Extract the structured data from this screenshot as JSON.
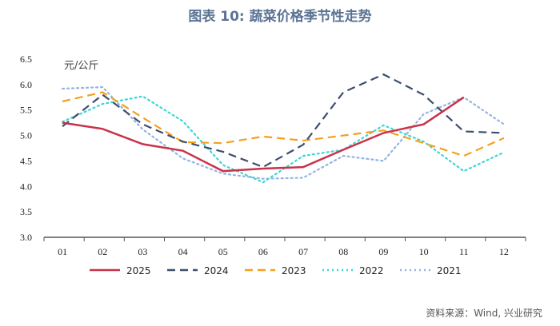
{
  "chart_data": {
    "type": "line",
    "title": "图表 10: 蔬菜价格季节性走势",
    "ylabel": "元/公斤",
    "xlabel": "",
    "categories": [
      "01",
      "02",
      "03",
      "04",
      "05",
      "06",
      "07",
      "08",
      "09",
      "10",
      "11",
      "12"
    ],
    "ylim": [
      3.0,
      6.5
    ],
    "yticks": [
      "3.0",
      "3.5",
      "4.0",
      "4.5",
      "5.0",
      "5.5",
      "6.0",
      "6.5"
    ],
    "grid": false,
    "legend_position": "bottom",
    "series": [
      {
        "name": "2025",
        "color": "#c8324a",
        "style": "solid",
        "values": [
          5.25,
          5.13,
          4.83,
          4.7,
          4.3,
          4.35,
          4.38,
          4.72,
          5.05,
          5.22,
          5.75,
          null
        ]
      },
      {
        "name": "2024",
        "color": "#3c4e6e",
        "style": "dash",
        "values": [
          5.18,
          5.8,
          5.22,
          4.88,
          4.68,
          4.38,
          4.82,
          5.85,
          6.2,
          5.8,
          5.08,
          5.05
        ]
      },
      {
        "name": "2023",
        "color": "#f5a01e",
        "style": "dash",
        "values": [
          5.67,
          5.85,
          5.35,
          4.87,
          4.85,
          4.98,
          4.9,
          5.0,
          5.1,
          4.85,
          4.6,
          4.95
        ]
      },
      {
        "name": "2022",
        "color": "#3ed6d6",
        "style": "dot",
        "values": [
          5.27,
          5.62,
          5.77,
          5.28,
          4.42,
          4.08,
          4.6,
          4.72,
          5.2,
          4.88,
          4.3,
          4.67
        ]
      },
      {
        "name": "2021",
        "color": "#94b4e0",
        "style": "dot",
        "values": [
          5.92,
          5.95,
          5.12,
          4.55,
          4.25,
          4.15,
          4.17,
          4.6,
          4.5,
          5.42,
          5.75,
          5.22
        ]
      }
    ]
  },
  "source": "资料来源：Wind, 兴业研究"
}
